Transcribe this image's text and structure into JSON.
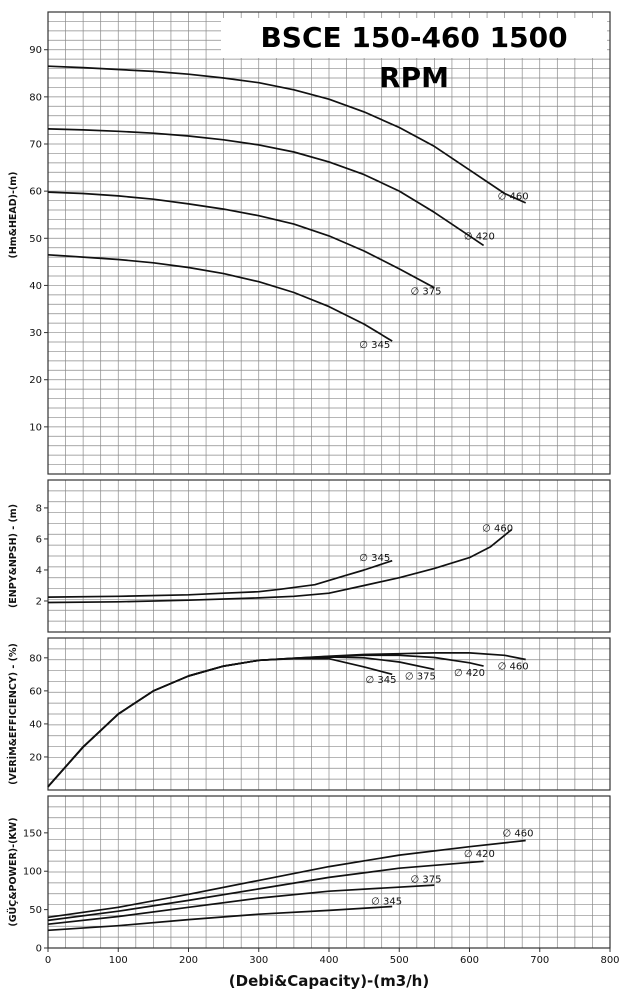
{
  "title": "BSCE 150-460 1500 RPM",
  "chart_data": [
    {
      "type": "line",
      "panel": "head",
      "ylabel": "(Hm&HEAD)-(m)",
      "xlim": [
        0,
        800
      ],
      "ylim": [
        0,
        98
      ],
      "yticks": [
        10,
        20,
        30,
        40,
        50,
        60,
        70,
        80,
        90
      ],
      "series": [
        {
          "name": "∅ 460",
          "x": [
            0,
            50,
            100,
            150,
            200,
            250,
            300,
            350,
            400,
            450,
            500,
            550,
            600,
            650,
            680
          ],
          "y": [
            86.5,
            86.2,
            85.8,
            85.4,
            84.8,
            84.0,
            83.0,
            81.5,
            79.5,
            76.8,
            73.5,
            69.5,
            64.5,
            59.5,
            57.5
          ]
        },
        {
          "name": "∅ 420",
          "x": [
            0,
            50,
            100,
            150,
            200,
            250,
            300,
            350,
            400,
            450,
            500,
            550,
            600,
            620
          ],
          "y": [
            73.2,
            73.0,
            72.7,
            72.3,
            71.7,
            70.9,
            69.8,
            68.3,
            66.2,
            63.5,
            60.0,
            55.5,
            50.5,
            48.5
          ]
        },
        {
          "name": "∅ 375",
          "x": [
            0,
            50,
            100,
            150,
            200,
            250,
            300,
            350,
            400,
            450,
            500,
            550
          ],
          "y": [
            59.8,
            59.5,
            59.0,
            58.3,
            57.3,
            56.2,
            54.8,
            53.0,
            50.5,
            47.3,
            43.5,
            39.5
          ]
        },
        {
          "name": "∅ 345",
          "x": [
            0,
            50,
            100,
            150,
            200,
            250,
            300,
            350,
            400,
            450,
            490
          ],
          "y": [
            46.5,
            46.0,
            45.5,
            44.8,
            43.8,
            42.5,
            40.8,
            38.5,
            35.5,
            31.8,
            28.2
          ]
        }
      ]
    },
    {
      "type": "line",
      "panel": "npsh",
      "ylabel": "(ENPY&NPSH) - (m)",
      "xlim": [
        0,
        800
      ],
      "ylim": [
        0,
        9.8
      ],
      "yticks": [
        2,
        4,
        6,
        8
      ],
      "series": [
        {
          "name": "∅ 345",
          "x": [
            0,
            100,
            200,
            250,
            300,
            330,
            380,
            420,
            450,
            490
          ],
          "y": [
            2.25,
            2.3,
            2.4,
            2.5,
            2.6,
            2.75,
            3.05,
            3.6,
            4.0,
            4.6
          ]
        },
        {
          "name": "∅ 460",
          "x": [
            0,
            100,
            200,
            300,
            350,
            400,
            450,
            500,
            550,
            600,
            630,
            660
          ],
          "y": [
            1.9,
            1.95,
            2.05,
            2.2,
            2.3,
            2.5,
            3.0,
            3.5,
            4.1,
            4.8,
            5.5,
            6.6
          ]
        }
      ]
    },
    {
      "type": "line",
      "panel": "efficiency",
      "ylabel": "(VERİM&EFFICIENCY) - (%)",
      "xlim": [
        0,
        800
      ],
      "ylim": [
        0,
        92
      ],
      "yticks": [
        20,
        40,
        60,
        80
      ],
      "series": [
        {
          "name": "∅ 345",
          "x": [
            0,
            50,
            100,
            150,
            200,
            250,
            300,
            350,
            400,
            450,
            490
          ],
          "y": [
            2,
            26,
            46,
            60,
            69,
            75,
            78.5,
            79.5,
            79.5,
            74.5,
            70
          ]
        },
        {
          "name": "∅ 375",
          "x": [
            0,
            50,
            100,
            150,
            200,
            250,
            300,
            350,
            400,
            450,
            500,
            550
          ],
          "y": [
            2,
            26,
            46,
            60,
            69,
            75,
            78.5,
            79.7,
            80.5,
            80,
            77.5,
            73
          ]
        },
        {
          "name": "∅ 420",
          "x": [
            0,
            50,
            100,
            150,
            200,
            250,
            300,
            350,
            400,
            450,
            500,
            550,
            600,
            620
          ],
          "y": [
            2,
            26,
            46,
            60,
            69,
            75,
            78.5,
            79.8,
            80.8,
            81.5,
            81.5,
            80.2,
            77,
            75
          ]
        },
        {
          "name": "∅ 460",
          "x": [
            0,
            50,
            100,
            150,
            200,
            250,
            300,
            350,
            400,
            450,
            500,
            550,
            600,
            650,
            680
          ],
          "y": [
            2,
            26,
            46,
            60,
            69,
            75,
            78.5,
            79.8,
            81,
            82,
            82.5,
            83,
            83,
            81.5,
            79
          ]
        }
      ]
    },
    {
      "type": "line",
      "panel": "power",
      "ylabel": "(GÜÇ&POWER)-(KW)",
      "xlabel": "(Debi&Capacity)-(m3/h)",
      "xlim": [
        0,
        800
      ],
      "ylim": [
        0,
        198
      ],
      "yticks": [
        0,
        50,
        100,
        150
      ],
      "xticks": [
        0,
        100,
        200,
        300,
        400,
        500,
        600,
        700,
        800
      ],
      "series": [
        {
          "name": "∅ 460",
          "x": [
            0,
            100,
            200,
            300,
            400,
            500,
            600,
            680
          ],
          "y": [
            40,
            53,
            70,
            88,
            106,
            121,
            132,
            140
          ]
        },
        {
          "name": "∅ 420",
          "x": [
            0,
            100,
            200,
            300,
            400,
            500,
            620
          ],
          "y": [
            36,
            48,
            62,
            77,
            92,
            104,
            113
          ]
        },
        {
          "name": "∅ 375",
          "x": [
            0,
            100,
            200,
            300,
            400,
            550
          ],
          "y": [
            31,
            41,
            53,
            65,
            74,
            82
          ]
        },
        {
          "name": "∅ 345",
          "x": [
            0,
            100,
            200,
            300,
            400,
            490
          ],
          "y": [
            23,
            29,
            37,
            44,
            49,
            54
          ]
        }
      ]
    }
  ]
}
